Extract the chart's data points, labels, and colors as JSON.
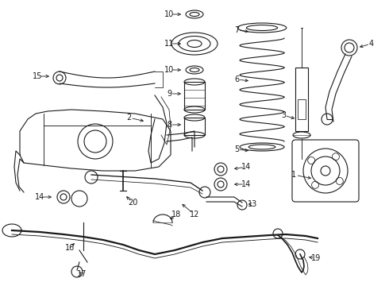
{
  "background_color": "#ffffff",
  "line_color": "#1a1a1a",
  "text_color": "#000000",
  "font_size": 7.0,
  "linewidth": 0.8
}
